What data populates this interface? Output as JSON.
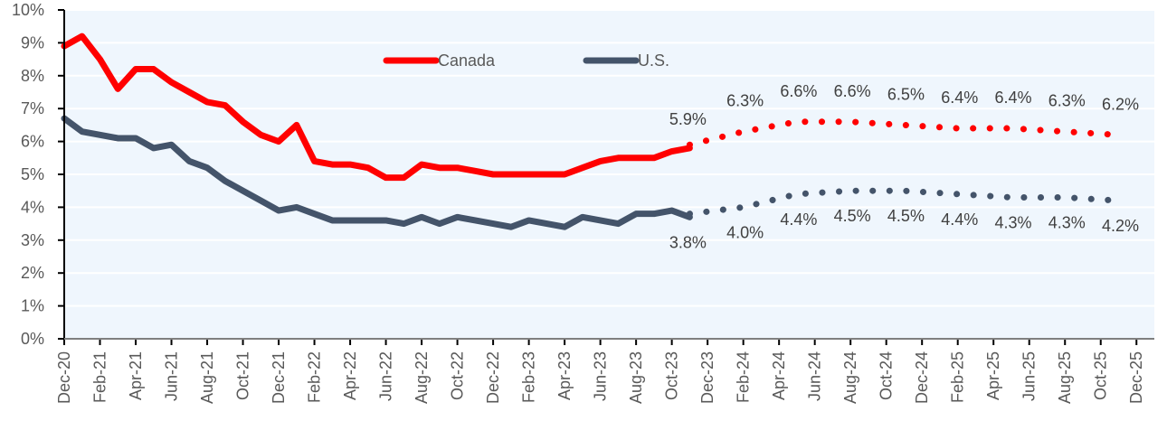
{
  "chart_data": {
    "type": "line",
    "title": "",
    "xlabel": "",
    "ylabel": "",
    "ylim": [
      0,
      10
    ],
    "y_ticks": [
      "0%",
      "1%",
      "2%",
      "3%",
      "4%",
      "5%",
      "6%",
      "7%",
      "8%",
      "9%",
      "10%"
    ],
    "x_range": [
      "Dec-20",
      "Jan-26"
    ],
    "x_ticks": [
      "Dec-20",
      "Feb-21",
      "Apr-21",
      "Jun-21",
      "Aug-21",
      "Oct-21",
      "Dec-21",
      "Feb-22",
      "Apr-22",
      "Jun-22",
      "Aug-22",
      "Oct-22",
      "Dec-22",
      "Feb-23",
      "Apr-23",
      "Jun-23",
      "Aug-23",
      "Oct-23",
      "Dec-23",
      "Feb-24",
      "Apr-24",
      "Jun-24",
      "Aug-24",
      "Oct-24",
      "Dec-24",
      "Feb-25",
      "Apr-25",
      "Jun-25",
      "Aug-25",
      "Oct-25",
      "Dec-25"
    ],
    "grid": true,
    "legend_position": "top-center",
    "series": [
      {
        "name": "Canada",
        "color": "#FF0000",
        "actual": {
          "x": [
            "Dec-20",
            "Jan-21",
            "Feb-21",
            "Mar-21",
            "Apr-21",
            "May-21",
            "Jun-21",
            "Jul-21",
            "Aug-21",
            "Sep-21",
            "Oct-21",
            "Nov-21",
            "Dec-21",
            "Jan-22",
            "Feb-22",
            "Mar-22",
            "Apr-22",
            "May-22",
            "Jun-22",
            "Jul-22",
            "Aug-22",
            "Sep-22",
            "Oct-22",
            "Nov-22",
            "Dec-22",
            "Jan-23",
            "Feb-23",
            "Mar-23",
            "Apr-23",
            "May-23",
            "Jun-23",
            "Jul-23",
            "Aug-23",
            "Sep-23",
            "Oct-23",
            "Nov-23"
          ],
          "values": [
            8.9,
            9.2,
            8.5,
            7.6,
            8.2,
            8.2,
            7.8,
            7.5,
            7.2,
            7.1,
            6.6,
            6.2,
            6.0,
            6.5,
            5.4,
            5.3,
            5.3,
            5.2,
            4.9,
            4.9,
            5.3,
            5.2,
            5.2,
            5.1,
            5.0,
            5.0,
            5.0,
            5.0,
            5.0,
            5.2,
            5.4,
            5.5,
            5.5,
            5.5,
            5.7,
            5.8
          ]
        },
        "forecast": {
          "x": [
            "Nov-23",
            "Feb-24",
            "May-24",
            "Aug-24",
            "Nov-24",
            "Feb-25",
            "May-25",
            "Aug-25",
            "Nov-25"
          ],
          "values": [
            5.9,
            6.3,
            6.6,
            6.6,
            6.5,
            6.4,
            6.4,
            6.3,
            6.2
          ],
          "labels": [
            "5.9%",
            "6.3%",
            "6.6%",
            "6.6%",
            "6.5%",
            "6.4%",
            "6.4%",
            "6.3%",
            "6.2%"
          ]
        }
      },
      {
        "name": "U.S.",
        "color": "#44546A",
        "actual": {
          "x": [
            "Dec-20",
            "Jan-21",
            "Feb-21",
            "Mar-21",
            "Apr-21",
            "May-21",
            "Jun-21",
            "Jul-21",
            "Aug-21",
            "Sep-21",
            "Oct-21",
            "Nov-21",
            "Dec-21",
            "Jan-22",
            "Feb-22",
            "Mar-22",
            "Apr-22",
            "May-22",
            "Jun-22",
            "Jul-22",
            "Aug-22",
            "Sep-22",
            "Oct-22",
            "Nov-22",
            "Dec-22",
            "Jan-23",
            "Feb-23",
            "Mar-23",
            "Apr-23",
            "May-23",
            "Jun-23",
            "Jul-23",
            "Aug-23",
            "Sep-23",
            "Oct-23",
            "Nov-23"
          ],
          "values": [
            6.7,
            6.3,
            6.2,
            6.1,
            6.1,
            5.8,
            5.9,
            5.4,
            5.2,
            4.8,
            4.5,
            4.2,
            3.9,
            4.0,
            3.8,
            3.6,
            3.6,
            3.6,
            3.6,
            3.5,
            3.7,
            3.5,
            3.7,
            3.6,
            3.5,
            3.4,
            3.6,
            3.5,
            3.4,
            3.7,
            3.6,
            3.5,
            3.8,
            3.8,
            3.9,
            3.7
          ]
        },
        "forecast": {
          "x": [
            "Nov-23",
            "Feb-24",
            "May-24",
            "Aug-24",
            "Nov-24",
            "Feb-25",
            "May-25",
            "Aug-25",
            "Nov-25"
          ],
          "values": [
            3.8,
            4.0,
            4.4,
            4.5,
            4.5,
            4.4,
            4.3,
            4.3,
            4.2
          ],
          "labels": [
            "3.8%",
            "4.0%",
            "4.4%",
            "4.5%",
            "4.5%",
            "4.4%",
            "4.3%",
            "4.3%",
            "4.2%"
          ]
        }
      }
    ]
  },
  "colors": {
    "plot_background": "#EFF6FD",
    "gridline": "#FFFFFF",
    "axis": "#000000"
  }
}
